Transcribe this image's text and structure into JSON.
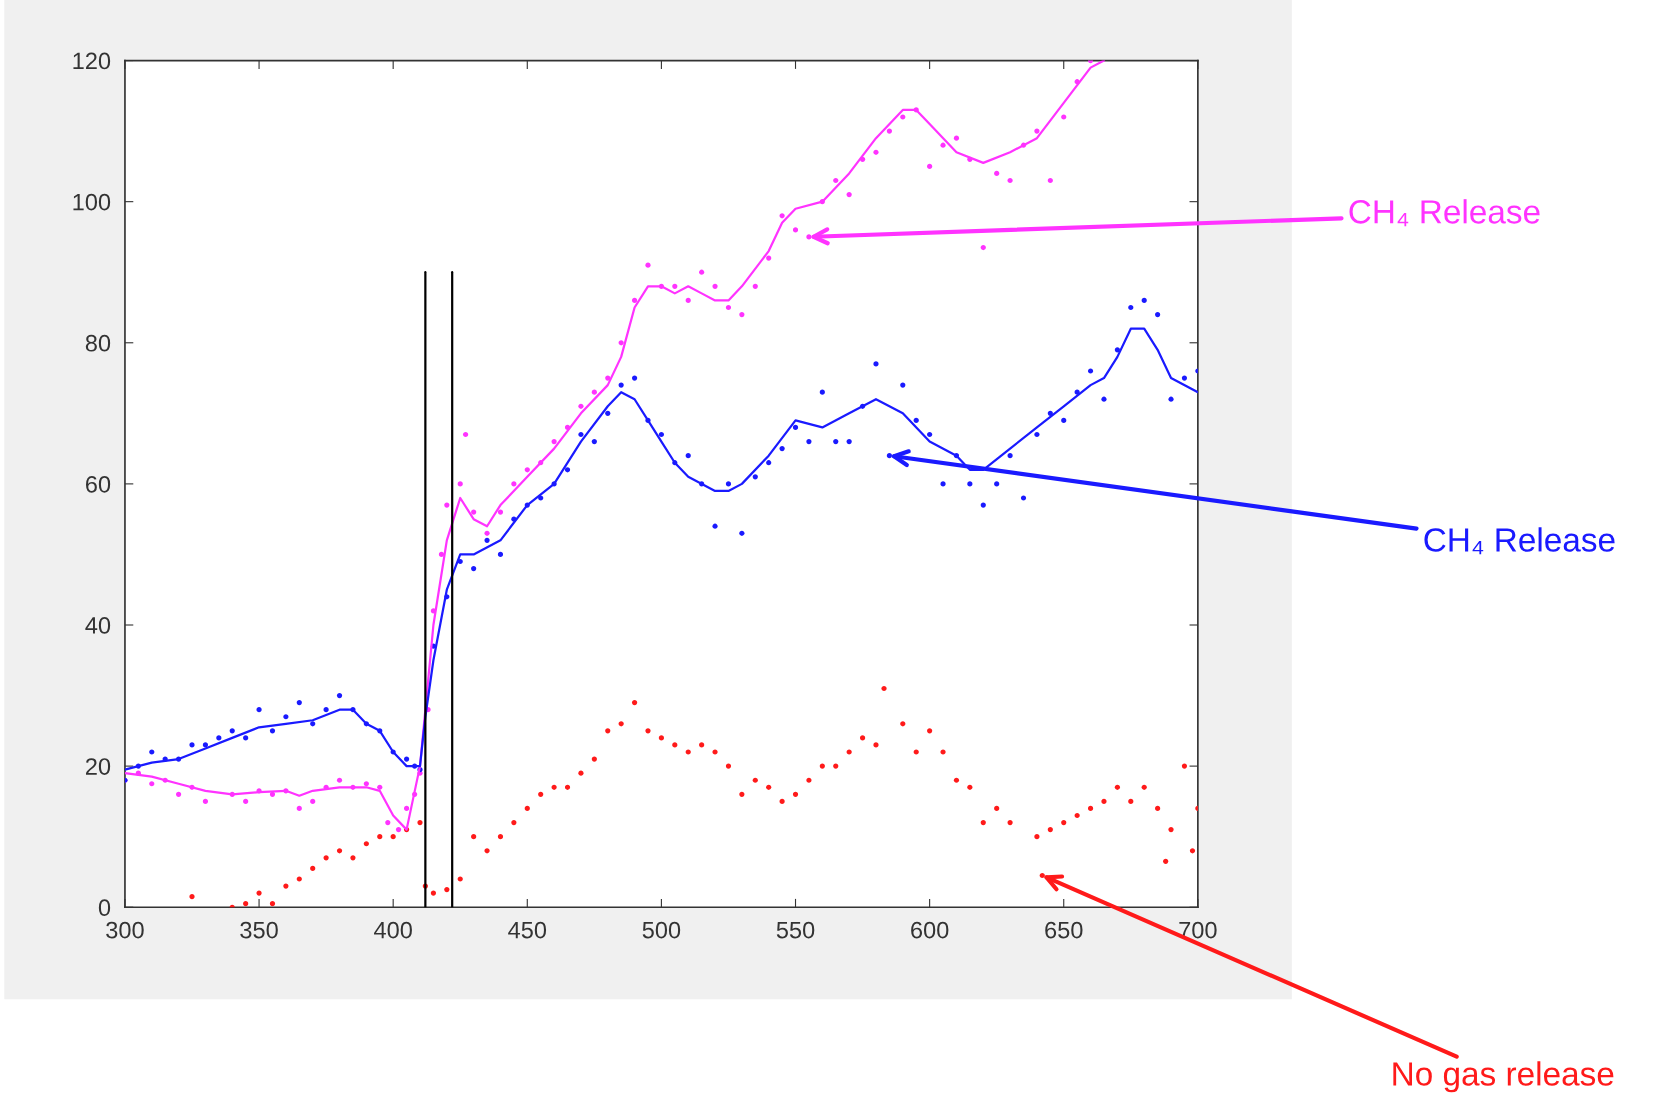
{
  "chart_data": {
    "type": "scatter",
    "xlim": [
      300,
      700
    ],
    "ylim": [
      0,
      120
    ],
    "xticks": [
      300,
      350,
      400,
      450,
      500,
      550,
      600,
      650,
      700
    ],
    "yticks": [
      0,
      20,
      40,
      60,
      80,
      100,
      120
    ],
    "grid": false,
    "legend": false,
    "series": [
      {
        "marker": "circle",
        "color": "#ff33ff",
        "x": [
          300,
          305,
          310,
          315,
          320,
          325,
          330,
          340,
          345,
          350,
          355,
          360,
          365,
          370,
          375,
          380,
          385,
          390,
          395,
          398,
          402,
          405,
          408,
          410,
          413,
          415,
          418,
          420,
          425,
          427,
          430,
          435,
          440,
          445,
          450,
          455,
          460,
          465,
          470,
          475,
          480,
          485,
          490,
          495,
          500,
          505,
          510,
          515,
          520,
          525,
          530,
          535,
          540,
          545,
          550,
          555,
          560,
          565,
          570,
          575,
          580,
          585,
          590,
          595,
          600,
          605,
          610,
          615,
          620,
          625,
          630,
          635,
          640,
          645,
          650,
          655,
          660
        ],
        "values": [
          18,
          19,
          17.5,
          18,
          16,
          17,
          15,
          16,
          15,
          16.5,
          16,
          16.5,
          14,
          15,
          17,
          18,
          17,
          17.5,
          17,
          12,
          11,
          14,
          16,
          19,
          28,
          42,
          50,
          57,
          60,
          67,
          56,
          53,
          56,
          60,
          62,
          63,
          66,
          68,
          71,
          73,
          75,
          80,
          86,
          91,
          88,
          88,
          86,
          90,
          88,
          85,
          84,
          88,
          92,
          98,
          96,
          95,
          100,
          103,
          101,
          106,
          107,
          110,
          112,
          113,
          105,
          108,
          109,
          106,
          93.5,
          104,
          103,
          108,
          110,
          103,
          112,
          117,
          120
        ]
      },
      {
        "marker": "circle",
        "color": "#1a1aff",
        "x": [
          300,
          305,
          310,
          315,
          320,
          325,
          330,
          335,
          340,
          345,
          350,
          355,
          360,
          365,
          370,
          375,
          380,
          385,
          390,
          395,
          400,
          405,
          408,
          410,
          415,
          420,
          425,
          430,
          435,
          440,
          445,
          450,
          455,
          460,
          465,
          470,
          475,
          480,
          485,
          490,
          495,
          500,
          505,
          510,
          515,
          520,
          525,
          530,
          535,
          540,
          545,
          550,
          555,
          560,
          565,
          570,
          575,
          580,
          585,
          590,
          595,
          600,
          605,
          610,
          615,
          620,
          625,
          630,
          635,
          640,
          645,
          650,
          655,
          660,
          665,
          670,
          675,
          680,
          685,
          690,
          695,
          700
        ],
        "values": [
          18,
          20,
          22,
          21,
          21,
          23,
          23,
          24,
          25,
          24,
          28,
          25,
          27,
          29,
          26,
          28,
          30,
          28,
          26,
          25,
          22,
          21,
          20,
          19.5,
          37,
          44,
          49,
          48,
          52,
          50,
          55,
          57,
          58,
          60,
          62,
          67,
          66,
          70,
          74,
          75,
          69,
          67,
          63,
          64,
          60,
          54,
          60,
          53,
          61,
          63,
          65,
          68,
          66,
          73,
          66,
          66,
          71,
          77,
          64,
          74,
          69,
          67,
          60,
          64,
          60,
          57,
          60,
          64,
          58,
          67,
          70,
          69,
          73,
          76,
          72,
          79,
          85,
          86,
          84,
          72,
          75,
          76
        ]
      },
      {
        "marker": "circle",
        "color": "#ff1a1a",
        "x": [
          325,
          340,
          345,
          350,
          355,
          360,
          365,
          370,
          375,
          380,
          385,
          390,
          395,
          400,
          405,
          410,
          412,
          415,
          420,
          425,
          430,
          435,
          440,
          445,
          450,
          455,
          460,
          465,
          470,
          475,
          480,
          485,
          490,
          495,
          500,
          505,
          510,
          515,
          520,
          525,
          530,
          535,
          540,
          545,
          550,
          555,
          560,
          565,
          570,
          575,
          580,
          583,
          590,
          595,
          600,
          605,
          610,
          615,
          620,
          625,
          630,
          640,
          642,
          645,
          650,
          655,
          660,
          665,
          670,
          675,
          680,
          685,
          688,
          690,
          695,
          698,
          700
        ],
        "values": [
          1.5,
          0,
          0.5,
          2,
          0.5,
          3,
          4,
          5.5,
          7,
          8,
          7,
          9,
          10,
          10,
          11,
          12,
          3,
          2,
          2.5,
          4,
          10,
          8,
          10,
          12,
          14,
          16,
          17,
          17,
          19,
          21,
          25,
          26,
          29,
          25,
          24,
          23,
          22,
          23,
          22,
          20,
          16,
          18,
          17,
          15,
          16,
          18,
          20,
          20,
          22,
          24,
          23,
          31,
          26,
          22,
          25,
          22,
          18,
          17,
          12,
          14,
          12,
          10,
          4.5,
          11,
          12,
          13,
          14,
          15,
          17,
          15,
          17,
          14,
          6.5,
          11,
          20,
          8,
          14
        ]
      },
      {
        "type": "line",
        "color": "#ff33ff",
        "x": [
          300,
          310,
          320,
          330,
          340,
          350,
          360,
          365,
          370,
          380,
          390,
          395,
          400,
          405,
          410,
          415,
          420,
          425,
          430,
          435,
          440,
          450,
          460,
          470,
          480,
          485,
          490,
          495,
          500,
          505,
          510,
          515,
          520,
          525,
          530,
          540,
          545,
          550,
          560,
          570,
          580,
          590,
          595,
          600,
          610,
          620,
          630,
          640,
          650,
          660,
          665
        ],
        "values": [
          19,
          18.5,
          17.5,
          16.5,
          16,
          16.3,
          16.5,
          15.8,
          16.5,
          17,
          17,
          16.5,
          13,
          11,
          20,
          40,
          52,
          58,
          55,
          54,
          57,
          61,
          65,
          70,
          74,
          78,
          85,
          88,
          88,
          87,
          88,
          87,
          86,
          86,
          88,
          93,
          97,
          99,
          100,
          104,
          109,
          113,
          113,
          111,
          107,
          105.5,
          107,
          109,
          114,
          119,
          120
        ]
      },
      {
        "type": "line",
        "color": "#1a1aff",
        "x": [
          300,
          310,
          320,
          330,
          340,
          350,
          360,
          370,
          380,
          385,
          390,
          395,
          400,
          405,
          410,
          412,
          415,
          420,
          425,
          430,
          440,
          450,
          460,
          470,
          480,
          485,
          490,
          495,
          500,
          505,
          510,
          520,
          525,
          530,
          540,
          550,
          560,
          570,
          580,
          590,
          600,
          610,
          615,
          620,
          630,
          640,
          650,
          660,
          665,
          670,
          675,
          680,
          685,
          690,
          700
        ],
        "values": [
          19.5,
          20.5,
          21,
          22.5,
          24,
          25.5,
          26,
          26.5,
          28,
          28,
          26,
          25,
          22,
          20,
          20,
          27,
          35,
          45,
          50,
          50,
          52,
          57,
          60,
          66,
          71,
          73,
          72,
          69,
          66,
          63,
          61,
          59,
          59,
          60,
          64,
          69,
          68,
          70,
          72,
          70,
          66,
          64,
          62,
          62,
          65,
          68,
          71,
          74,
          75,
          78,
          82,
          82,
          79,
          75,
          73
        ]
      },
      {
        "type": "line",
        "color": "#000000",
        "x": [
          412,
          412
        ],
        "values": [
          0,
          90
        ]
      },
      {
        "type": "line",
        "color": "#000000",
        "x": [
          422,
          422
        ],
        "values": [
          0,
          90
        ]
      }
    ],
    "annotations": [
      {
        "text": "CH₄ Release",
        "x": 555,
        "y": 95
      },
      {
        "text": "CH₄ Release",
        "x": 585,
        "y": 64
      },
      {
        "text": "No gas release",
        "x": 642,
        "y": 4.5
      }
    ]
  }
}
